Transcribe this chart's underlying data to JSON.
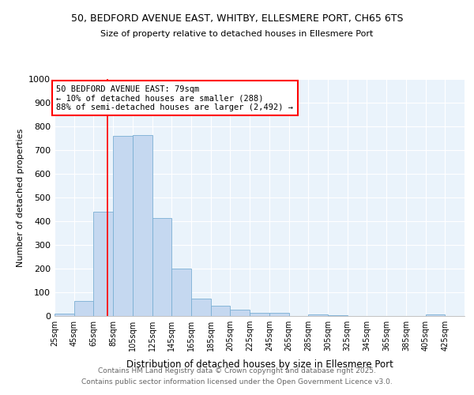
{
  "title1": "50, BEDFORD AVENUE EAST, WHITBY, ELLESMERE PORT, CH65 6TS",
  "title2": "Size of property relative to detached houses in Ellesmere Port",
  "xlabel": "Distribution of detached houses by size in Ellesmere Port",
  "ylabel": "Number of detached properties",
  "bin_edges": [
    25,
    45,
    65,
    85,
    105,
    125,
    145,
    165,
    185,
    205,
    225,
    245,
    265,
    285,
    305,
    325,
    345,
    365,
    385,
    405,
    425
  ],
  "bar_heights": [
    10,
    65,
    440,
    760,
    765,
    415,
    200,
    75,
    45,
    28,
    13,
    13,
    0,
    8,
    5,
    0,
    0,
    0,
    0,
    8
  ],
  "bar_color": "#c5d8f0",
  "bar_edgecolor": "#7aafd4",
  "vline_x": 79,
  "vline_color": "red",
  "annotation_text": "50 BEDFORD AVENUE EAST: 79sqm\n← 10% of detached houses are smaller (288)\n88% of semi-detached houses are larger (2,492) →",
  "annotation_box_color": "red",
  "ylim": [
    0,
    1000
  ],
  "background_color": "#ffffff",
  "plot_bg_color": "#eaf3fb",
  "footer1": "Contains HM Land Registry data © Crown copyright and database right 2025.",
  "footer2": "Contains public sector information licensed under the Open Government Licence v3.0.",
  "tick_labels": [
    "25sqm",
    "45sqm",
    "65sqm",
    "85sqm",
    "105sqm",
    "125sqm",
    "145sqm",
    "165sqm",
    "185sqm",
    "205sqm",
    "225sqm",
    "245sqm",
    "265sqm",
    "285sqm",
    "305sqm",
    "325sqm",
    "345sqm",
    "365sqm",
    "385sqm",
    "405sqm",
    "425sqm"
  ]
}
